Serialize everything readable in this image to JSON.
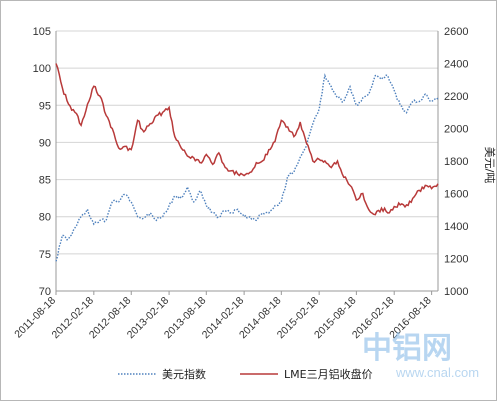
{
  "chart_data": {
    "type": "line",
    "title": "",
    "ylabel_left": "",
    "ylabel_right": "美元/吨",
    "x_ticks": [
      "2011-08-18",
      "2012-02-18",
      "2012-08-18",
      "2013-02-18",
      "2013-08-18",
      "2014-02-18",
      "2014-08-18",
      "2015-02-18",
      "2015-08-18",
      "2016-02-18",
      "2016-08-18"
    ],
    "ylim_left": [
      70,
      105
    ],
    "yticks_left": [
      "70",
      "75",
      "80",
      "85",
      "90",
      "95",
      "100",
      "105"
    ],
    "ylim_right": [
      1000,
      2600
    ],
    "yticks_right": [
      "1000",
      "1200",
      "1400",
      "1600",
      "1800",
      "2000",
      "2200",
      "2400",
      "2600"
    ],
    "grid": "horizontal",
    "legend": "bottom",
    "series": [
      {
        "name": "美元指数",
        "axis": "left",
        "color": "#4f81bd",
        "style": "dotted",
        "x": [
          "2011-08-18",
          "2011-09-18",
          "2011-10-18",
          "2011-11-18",
          "2011-12-18",
          "2012-01-18",
          "2012-02-18",
          "2012-03-18",
          "2012-04-18",
          "2012-05-18",
          "2012-06-18",
          "2012-07-18",
          "2012-08-18",
          "2012-09-18",
          "2012-10-18",
          "2012-11-18",
          "2012-12-18",
          "2013-01-18",
          "2013-02-18",
          "2013-03-18",
          "2013-04-18",
          "2013-05-18",
          "2013-06-18",
          "2013-07-18",
          "2013-08-18",
          "2013-09-18",
          "2013-10-18",
          "2013-11-18",
          "2013-12-18",
          "2014-01-18",
          "2014-02-18",
          "2014-03-18",
          "2014-04-18",
          "2014-05-18",
          "2014-06-18",
          "2014-07-18",
          "2014-08-18",
          "2014-09-18",
          "2014-10-18",
          "2014-11-18",
          "2014-12-18",
          "2015-01-18",
          "2015-02-18",
          "2015-03-18",
          "2015-04-18",
          "2015-05-18",
          "2015-06-18",
          "2015-07-18",
          "2015-08-18",
          "2015-09-18",
          "2015-10-18",
          "2015-11-18",
          "2015-12-18",
          "2016-01-18",
          "2016-02-18",
          "2016-03-18",
          "2016-04-18",
          "2016-05-18",
          "2016-06-18",
          "2016-07-18",
          "2016-08-18",
          "2016-09-18"
        ],
        "values": [
          74.0,
          77.5,
          77.0,
          78.5,
          80.0,
          81.0,
          79.0,
          79.5,
          79.5,
          82.0,
          82.0,
          83.0,
          82.0,
          80.0,
          79.8,
          80.5,
          79.5,
          80.0,
          81.5,
          82.8,
          82.5,
          84.0,
          82.0,
          83.5,
          81.5,
          80.5,
          80.0,
          80.8,
          80.5,
          81.0,
          80.0,
          80.0,
          79.5,
          80.5,
          80.5,
          81.5,
          82.0,
          85.5,
          86.0,
          88.0,
          89.5,
          92.5,
          94.5,
          99.0,
          97.5,
          96.0,
          95.5,
          97.5,
          95.0,
          96.0,
          96.5,
          99.0,
          98.5,
          99.0,
          97.0,
          95.0,
          94.0,
          95.5,
          95.5,
          96.5,
          95.5,
          96.0
        ]
      },
      {
        "name": "LME三月铝收盘价",
        "axis": "right",
        "color": "#b83a3a",
        "style": "solid",
        "x": [
          "2011-08-18",
          "2011-09-18",
          "2011-10-18",
          "2011-11-18",
          "2011-12-18",
          "2012-01-18",
          "2012-02-18",
          "2012-03-18",
          "2012-04-18",
          "2012-05-18",
          "2012-06-18",
          "2012-07-18",
          "2012-08-18",
          "2012-09-18",
          "2012-10-18",
          "2012-11-18",
          "2012-12-18",
          "2013-01-18",
          "2013-02-18",
          "2013-03-18",
          "2013-04-18",
          "2013-05-18",
          "2013-06-18",
          "2013-07-18",
          "2013-08-18",
          "2013-09-18",
          "2013-10-18",
          "2013-11-18",
          "2013-12-18",
          "2014-01-18",
          "2014-02-18",
          "2014-03-18",
          "2014-04-18",
          "2014-05-18",
          "2014-06-18",
          "2014-07-18",
          "2014-08-18",
          "2014-09-18",
          "2014-10-18",
          "2014-11-18",
          "2014-12-18",
          "2015-01-18",
          "2015-02-18",
          "2015-03-18",
          "2015-04-18",
          "2015-05-18",
          "2015-06-18",
          "2015-07-18",
          "2015-08-18",
          "2015-09-18",
          "2015-10-18",
          "2015-11-18",
          "2015-12-18",
          "2016-01-18",
          "2016-02-18",
          "2016-03-18",
          "2016-04-18",
          "2016-05-18",
          "2016-06-18",
          "2016-07-18",
          "2016-08-18",
          "2016-09-18"
        ],
        "values": [
          2400,
          2250,
          2150,
          2100,
          2020,
          2150,
          2260,
          2200,
          2080,
          2000,
          1880,
          1890,
          1870,
          2050,
          1980,
          2030,
          2080,
          2100,
          2130,
          1950,
          1880,
          1830,
          1820,
          1790,
          1840,
          1780,
          1850,
          1760,
          1740,
          1720,
          1710,
          1730,
          1790,
          1800,
          1870,
          1920,
          2050,
          2010,
          1950,
          2040,
          1910,
          1800,
          1810,
          1800,
          1760,
          1800,
          1700,
          1650,
          1560,
          1600,
          1500,
          1470,
          1510,
          1480,
          1520,
          1530,
          1530,
          1570,
          1620,
          1650,
          1630,
          1660
        ]
      }
    ]
  }
}
